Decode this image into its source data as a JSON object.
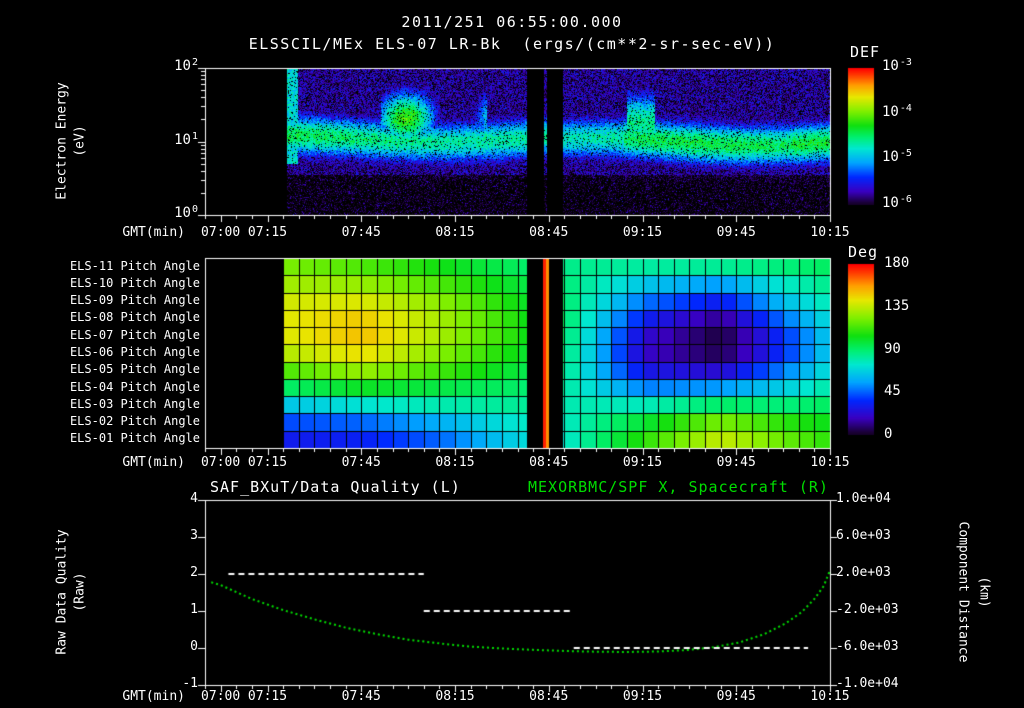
{
  "titles": {
    "datetime": "2011/251 06:55:00.000",
    "main": "ELSSCIL/MEx ELS-07 LR-Bk  (ergs/(cm**2-sr-sec-eV))"
  },
  "colors": {
    "background": "#000000",
    "foreground": "#ffffff",
    "series_green": "#00dd00",
    "colormap": [
      [
        0,
        "#000000"
      ],
      [
        0.06,
        "#1a0033"
      ],
      [
        0.14,
        "#3a00c0"
      ],
      [
        0.24,
        "#0028ff"
      ],
      [
        0.34,
        "#00a4ff"
      ],
      [
        0.44,
        "#00e8d0"
      ],
      [
        0.52,
        "#00f070"
      ],
      [
        0.6,
        "#10e010"
      ],
      [
        0.7,
        "#80f000"
      ],
      [
        0.8,
        "#e8e800"
      ],
      [
        0.88,
        "#ffa000"
      ],
      [
        0.95,
        "#ff4000"
      ],
      [
        1,
        "#ff0000"
      ]
    ]
  },
  "axes": {
    "xlabel": "GMT(min)",
    "start_time": "06:55",
    "span_minutes": 200,
    "x_tick_labels": [
      "07:00",
      "07:15",
      "07:45",
      "08:15",
      "08:45",
      "09:15",
      "09:45",
      "10:15"
    ],
    "x_tick_minutes": [
      5,
      20,
      50,
      80,
      110,
      140,
      170,
      200
    ]
  },
  "panel1": {
    "ylabel_line1": "Electron Energy",
    "ylabel_line2": "(eV)",
    "y_ticks": [
      {
        "mantissa": "10",
        "exponent": "2"
      },
      {
        "mantissa": "10",
        "exponent": "1"
      },
      {
        "mantissa": "10",
        "exponent": "0"
      }
    ],
    "colorbar": {
      "title": "DEF",
      "tick_labels": [
        {
          "mantissa": "10",
          "exponent": "-3"
        },
        {
          "mantissa": "10",
          "exponent": "-4"
        },
        {
          "mantissa": "10",
          "exponent": "-5"
        },
        {
          "mantissa": "10",
          "exponent": "-6"
        }
      ]
    }
  },
  "panel2": {
    "row_labels": [
      "ELS-11 Pitch Angle",
      "ELS-10 Pitch Angle",
      "ELS-09 Pitch Angle",
      "ELS-08 Pitch Angle",
      "ELS-07 Pitch Angle",
      "ELS-06 Pitch Angle",
      "ELS-05 Pitch Angle",
      "ELS-04 Pitch Angle",
      "ELS-03 Pitch Angle",
      "ELS-02 Pitch Angle",
      "ELS-01 Pitch Angle"
    ],
    "colorbar": {
      "title": "Deg",
      "tick_labels": [
        "180",
        "135",
        "90",
        "45",
        "0"
      ]
    }
  },
  "panel3": {
    "left_title": "SAF_BXuT/Data Quality (L)",
    "right_title": "MEXORBMC/SPF X, Spacecraft (R)",
    "ylabel_left_line1": "Raw Data Quality",
    "ylabel_left_line2": "(Raw)",
    "ylabel_right_line1": "Component Distance",
    "ylabel_right_line2": "(km)",
    "left_tick_labels": [
      "4",
      "3",
      "2",
      "1",
      "0",
      "-1"
    ],
    "right_tick_labels": [
      "1.0e+04",
      "6.0e+03",
      "2.0e+03",
      "-2.0e+03",
      "-6.0e+03",
      "-1.0e+04"
    ]
  },
  "chart_data": [
    {
      "type": "heatmap",
      "name": "electron-energy-spectrogram",
      "title": "ELSSCIL/MEx ELS-07 LR-Bk",
      "value_units": "ergs/(cm**2-sr-sec-eV)",
      "x_axis": {
        "label": "GMT(min)",
        "start": "06:55",
        "end": "10:15"
      },
      "y_axis": {
        "label": "Electron Energy (eV)",
        "scale": "log",
        "range_ev": [
          1,
          100
        ]
      },
      "colorbar": {
        "title": "DEF",
        "range_log10": [
          -6,
          -3
        ]
      },
      "data_start_min": 26,
      "gaps_min": [
        [
          103,
          114.5
        ]
      ],
      "thin_columns_min": [
        [
          108.3,
          109.4
        ]
      ],
      "main_band": {
        "center_ev": 11,
        "peak_flux_log10": -4.45,
        "sigma_dex": 0.2
      },
      "enhancements": [
        {
          "t0_min": 56,
          "t1_min": 90,
          "center_ev": 21,
          "peak_flux_log10": -4.1
        },
        {
          "t0_min": 135,
          "t1_min": 144,
          "center_ev": 18,
          "peak_flux_log10": -4.5
        }
      ],
      "background_flux_log10": -5.8
    },
    {
      "type": "heatmap",
      "name": "pitch-angle-panel",
      "units": "deg",
      "value_range": [
        0,
        180
      ],
      "rows_top_to_bottom": [
        "ELS-11",
        "ELS-10",
        "ELS-09",
        "ELS-08",
        "ELS-07",
        "ELS-06",
        "ELS-05",
        "ELS-04",
        "ELS-03",
        "ELS-02",
        "ELS-01"
      ],
      "data_start_min": 25,
      "cell_minutes": 5,
      "t_keyframes_min": [
        26,
        50,
        75,
        100,
        115,
        140,
        165,
        185,
        200
      ],
      "values_deg_by_keyframe": [
        [
          125,
          132,
          140,
          143,
          142,
          135,
          118,
          95,
          70,
          48,
          38
        ],
        [
          118,
          130,
          142,
          150,
          152,
          146,
          130,
          105,
          78,
          52,
          40
        ],
        [
          108,
          118,
          128,
          133,
          133,
          127,
          116,
          100,
          84,
          64,
          52
        ],
        [
          96,
          102,
          107,
          110,
          110,
          106,
          101,
          95,
          88,
          80,
          74
        ],
        [
          90,
          93,
          95,
          96,
          95,
          93,
          90,
          87,
          84,
          81,
          79
        ],
        [
          86,
          70,
          54,
          40,
          30,
          28,
          36,
          56,
          82,
          102,
          112
        ],
        [
          88,
          60,
          38,
          20,
          12,
          14,
          30,
          60,
          95,
          125,
          138
        ],
        [
          92,
          80,
          68,
          54,
          44,
          44,
          56,
          72,
          92,
          112,
          122
        ],
        [
          96,
          90,
          84,
          77,
          72,
          72,
          78,
          86,
          96,
          106,
          112
        ]
      ],
      "gaps_min": [
        [
          103,
          114.5
        ]
      ],
      "stripes": [
        {
          "t0": 108.2,
          "t1": 109.0,
          "color": "#ff2000"
        },
        {
          "t0": 109.2,
          "t1": 110.0,
          "color": "#ff9000"
        }
      ]
    },
    {
      "type": "line",
      "name": "quality-and-distance",
      "left_series": {
        "name": "SAF_BXuT/Data Quality (L)",
        "color": "#ffffff",
        "style": "dashed",
        "segments": [
          {
            "t0_min": 7.5,
            "t1_min": 70,
            "value": 2
          },
          {
            "t0_min": 70,
            "t1_min": 118,
            "value": 1
          },
          {
            "t0_min": 118,
            "t1_min": 193,
            "value": 0
          }
        ]
      },
      "right_series": {
        "name": "MEXORBMC/SPF X, Spacecraft (R)",
        "color": "#00dd00",
        "style": "dotted",
        "points_min_km": [
          [
            2,
            1100
          ],
          [
            5,
            800
          ],
          [
            15,
            -700
          ],
          [
            25,
            -1900
          ],
          [
            35,
            -2900
          ],
          [
            45,
            -3800
          ],
          [
            55,
            -4500
          ],
          [
            65,
            -5100
          ],
          [
            75,
            -5500
          ],
          [
            85,
            -5850
          ],
          [
            95,
            -6050
          ],
          [
            105,
            -6200
          ],
          [
            115,
            -6320
          ],
          [
            125,
            -6400
          ],
          [
            135,
            -6430
          ],
          [
            145,
            -6380
          ],
          [
            155,
            -6200
          ],
          [
            163,
            -5900
          ],
          [
            171,
            -5400
          ],
          [
            179,
            -4500
          ],
          [
            186,
            -3300
          ],
          [
            191,
            -2100
          ],
          [
            195,
            -700
          ],
          [
            198,
            700
          ],
          [
            200,
            2400
          ]
        ]
      },
      "left_axis": {
        "label": "Raw Data Quality (Raw)",
        "range": [
          -1,
          4
        ]
      },
      "right_axis": {
        "label": "Component Distance (km)",
        "range": [
          -10000,
          10000
        ]
      }
    }
  ]
}
